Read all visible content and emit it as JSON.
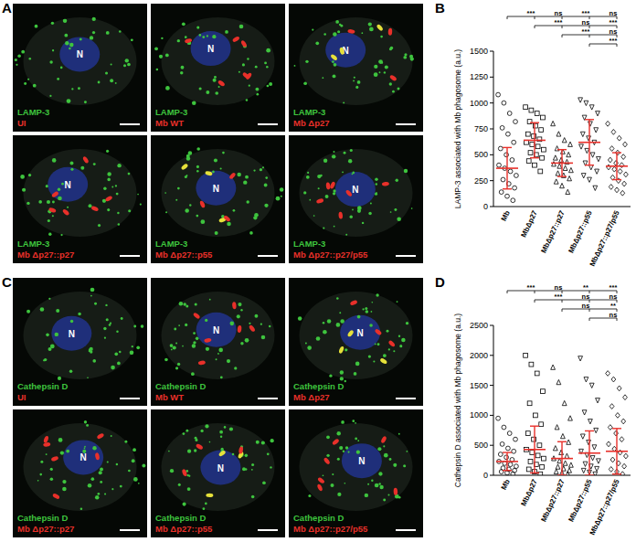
{
  "chart_data": [
    {
      "type": "dotplot",
      "title": "B",
      "y_label": "LAMP-3 associated with Mb phagosome (a.u.)",
      "categories": [
        "Mb",
        "MbΔp27",
        "MbΔp27::p27",
        "MbΔp27::p55",
        "MbΔp27::p27/p55"
      ],
      "markers": [
        "circle",
        "square",
        "triangle",
        "triangle-down",
        "diamond"
      ],
      "points": [
        [
          1080,
          1000,
          900,
          820,
          760,
          700,
          620,
          560,
          500,
          450,
          400,
          370,
          340,
          300,
          260,
          220,
          180,
          140,
          100,
          60
        ],
        [
          960,
          930,
          900,
          860,
          820,
          780,
          740,
          700,
          680,
          650,
          620,
          600,
          580,
          550,
          520,
          500,
          470,
          440,
          400,
          340
        ],
        [
          800,
          700,
          640,
          600,
          560,
          530,
          500,
          470,
          450,
          430,
          410,
          390,
          370,
          350,
          320,
          300,
          270,
          240,
          200,
          140
        ],
        [
          1030,
          1000,
          960,
          900,
          860,
          800,
          740,
          700,
          660,
          620,
          580,
          540,
          500,
          460,
          420,
          380,
          340,
          300,
          260,
          180
        ],
        [
          800,
          720,
          660,
          600,
          560,
          520,
          480,
          450,
          420,
          400,
          380,
          360,
          340,
          310,
          280,
          250,
          220,
          190,
          160,
          130
        ]
      ],
      "mean": [
        370,
        640,
        420,
        620,
        390
      ],
      "sd": [
        200,
        170,
        130,
        220,
        130
      ],
      "error_color": "#e8302a",
      "ylim": [
        0,
        1500
      ],
      "yticks": [
        0,
        250,
        500,
        750,
        1000,
        1250,
        1500
      ],
      "significance": [
        {
          "from": 0,
          "to": [
            1,
            2,
            3,
            4
          ],
          "labels": [
            "***",
            "ns",
            "***",
            "ns"
          ]
        },
        {
          "from": 1,
          "to": [
            2,
            3,
            4
          ],
          "labels": [
            "***",
            "ns",
            "***"
          ]
        },
        {
          "from": 2,
          "to": [
            3,
            4
          ],
          "labels": [
            "***",
            "ns"
          ]
        },
        {
          "from": 3,
          "to": [
            4
          ],
          "labels": [
            "***"
          ]
        }
      ]
    },
    {
      "type": "dotplot",
      "title": "D",
      "y_label": "Cathepsin D associated with Mb phagosome (a.u.)",
      "categories": [
        "Mb",
        "MbΔp27",
        "MbΔp27::p27",
        "MbΔp27::p55",
        "MbΔp27::p27/p55"
      ],
      "markers": [
        "circle",
        "square",
        "triangle",
        "triangle-down",
        "diamond"
      ],
      "points": [
        [
          950,
          800,
          700,
          600,
          520,
          450,
          400,
          350,
          300,
          260,
          230,
          200,
          180,
          150,
          120,
          100,
          80,
          60,
          40,
          20
        ],
        [
          2000,
          1850,
          1700,
          1400,
          1200,
          1000,
          850,
          700,
          600,
          500,
          430,
          380,
          330,
          280,
          230,
          180,
          140,
          100,
          60,
          20
        ],
        [
          1800,
          1550,
          1200,
          950,
          800,
          650,
          550,
          450,
          380,
          320,
          280,
          240,
          200,
          170,
          140,
          110,
          80,
          60,
          40,
          20
        ],
        [
          1950,
          1600,
          1500,
          1250,
          1050,
          900,
          750,
          650,
          550,
          470,
          400,
          340,
          290,
          240,
          190,
          150,
          110,
          80,
          50,
          20
        ],
        [
          1700,
          1600,
          1450,
          1300,
          1150,
          1000,
          900,
          800,
          700,
          600,
          520,
          440,
          380,
          320,
          260,
          200,
          150,
          100,
          60,
          20
        ]
      ],
      "mean": [
        230,
        430,
        280,
        370,
        400
      ],
      "sd": [
        150,
        390,
        280,
        370,
        380
      ],
      "error_color": "#e8302a",
      "ylim": [
        0,
        2500
      ],
      "yticks": [
        0,
        500,
        1000,
        1500,
        2000,
        2500
      ],
      "significance": [
        {
          "from": 0,
          "to": [
            1,
            2,
            3,
            4
          ],
          "labels": [
            "***",
            "ns",
            "**",
            "***"
          ]
        },
        {
          "from": 1,
          "to": [
            2,
            3,
            4
          ],
          "labels": [
            "***",
            "ns",
            "ns"
          ]
        },
        {
          "from": 2,
          "to": [
            3,
            4
          ],
          "labels": [
            "ns",
            "**"
          ]
        },
        {
          "from": 3,
          "to": [
            4
          ],
          "labels": [
            "ns"
          ]
        }
      ]
    }
  ],
  "images": [
    {
      "panel": "A",
      "stain": "LAMP-3",
      "nucleus": "N",
      "conditions": [
        "UI",
        "Mb WT",
        "Mb Δp27",
        "Mb Δp27::p27",
        "Mb Δp27::p55",
        "Mb Δp27::p27/p55"
      ]
    },
    {
      "panel": "C",
      "stain": "Cathepsin D",
      "nucleus": "N",
      "conditions": [
        "UI",
        "Mb WT",
        "Mb Δp27",
        "Mb Δp27::p27",
        "Mb Δp27::p55",
        "Mb Δp27::p27/p55"
      ]
    }
  ]
}
